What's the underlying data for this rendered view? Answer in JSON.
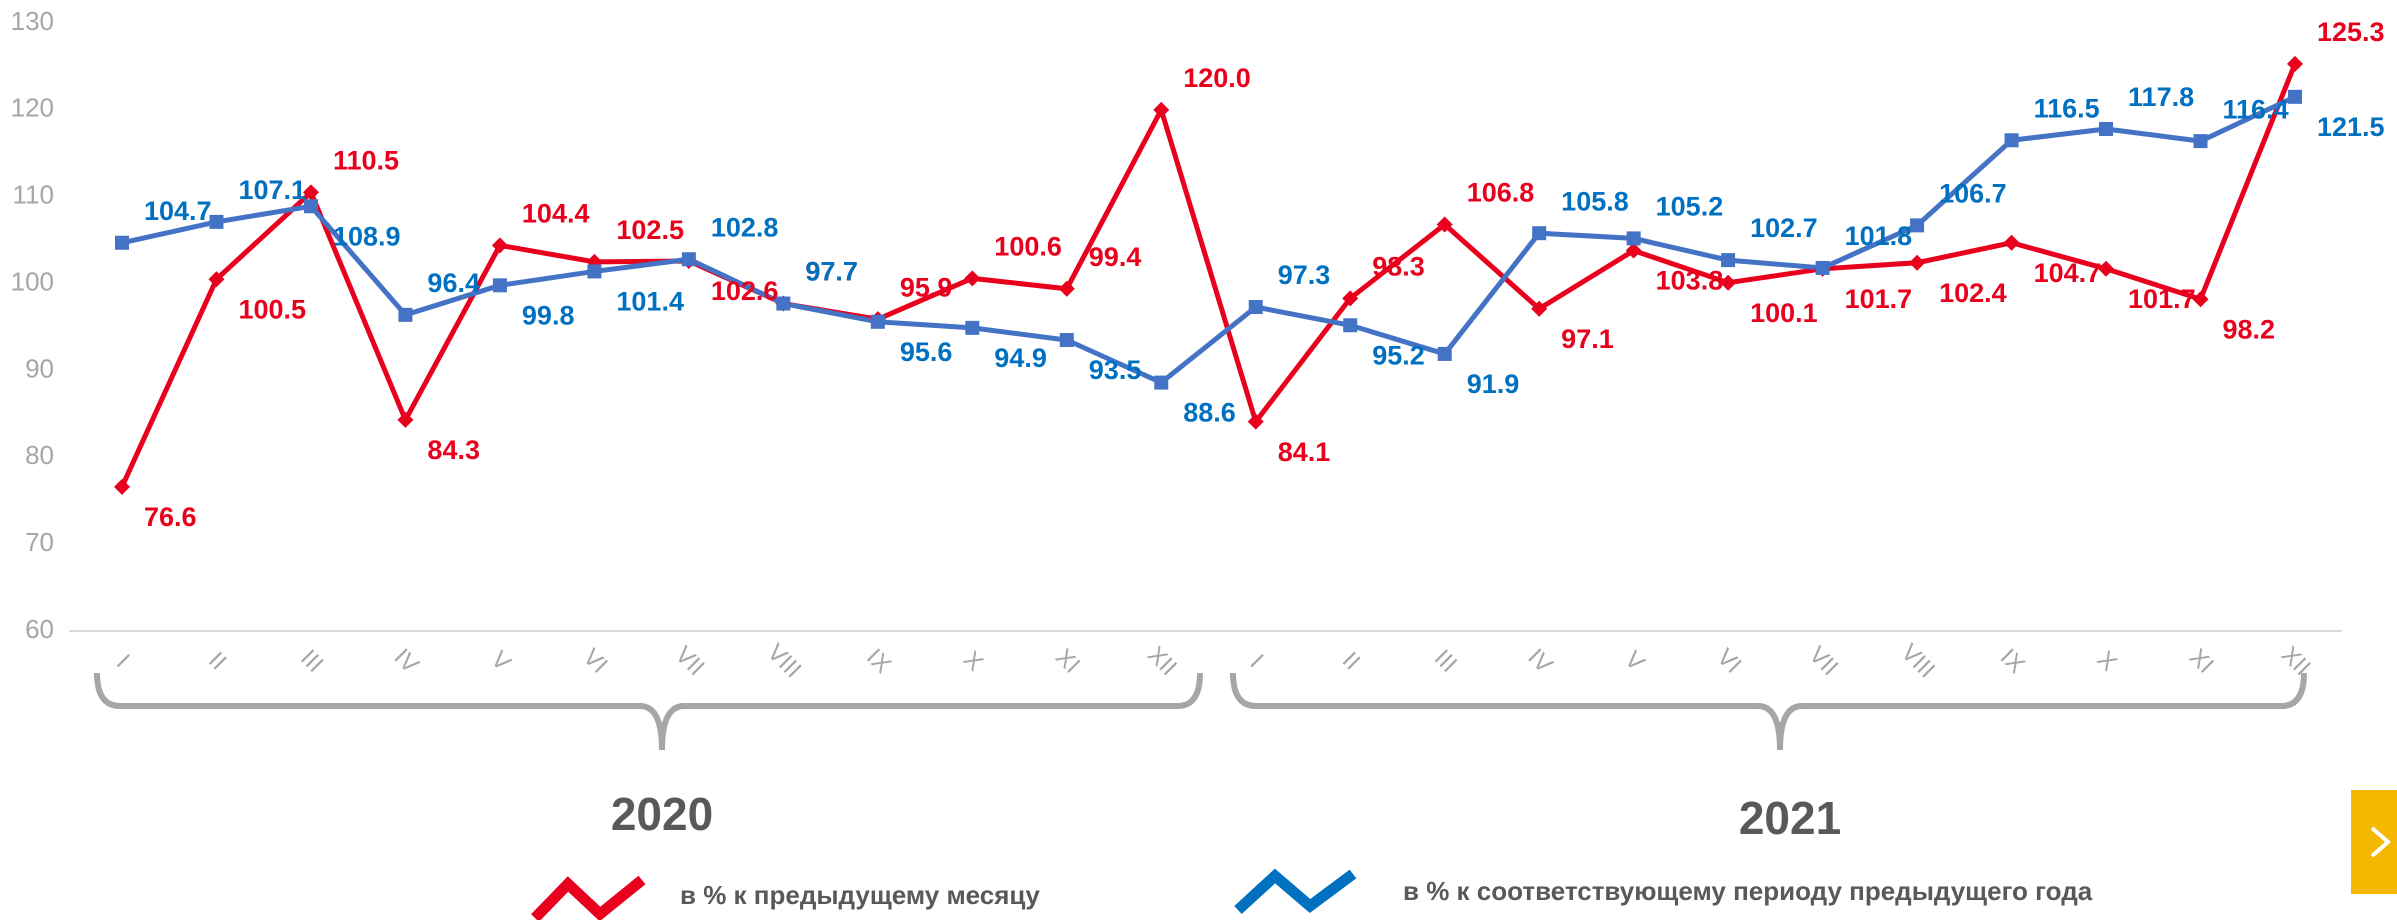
{
  "chart_data": {
    "type": "line",
    "categories": [
      "I",
      "II",
      "III",
      "IV",
      "V",
      "VI",
      "VII",
      "VIII",
      "IX",
      "X",
      "XI",
      "XII",
      "I",
      "II",
      "III",
      "IV",
      "V",
      "VI",
      "VII",
      "VIII",
      "IX",
      "X",
      "XI",
      "XII"
    ],
    "years": [
      "2020",
      "2021"
    ],
    "series": [
      {
        "name": "в % к предыдущему месяцу",
        "color": "#e8001c",
        "values": [
          76.6,
          100.5,
          110.5,
          84.3,
          104.4,
          102.5,
          102.6,
          97.7,
          95.9,
          100.6,
          99.4,
          120.0,
          84.1,
          98.3,
          106.8,
          97.1,
          103.8,
          100.1,
          101.7,
          102.4,
          104.7,
          101.7,
          98.2,
          125.3
        ],
        "value_labels": [
          "76.6",
          "100.5",
          "110.5",
          "84.3",
          "104.4",
          "102.5",
          "102.6",
          "97.7",
          "95.9",
          "100.6",
          "99.4",
          "120.0",
          "84.1",
          "98.3",
          "106.8",
          "97.1",
          "103.8",
          "100.1",
          "101.7",
          "102.4",
          "104.7",
          "101.7",
          "98.2",
          "125.3"
        ]
      },
      {
        "name": "в % к соответствующему периоду предыдущего года",
        "color": "#4472c4",
        "values": [
          104.7,
          107.1,
          108.9,
          96.4,
          99.8,
          101.4,
          102.8,
          97.7,
          95.6,
          94.9,
          93.5,
          88.6,
          97.3,
          95.2,
          91.9,
          105.8,
          105.2,
          102.7,
          101.8,
          106.7,
          116.5,
          117.8,
          116.4,
          121.5
        ],
        "value_labels": [
          "104.7",
          "107.1",
          "108.9",
          "96.4",
          "99.8",
          "101.4",
          "102.8",
          "97.7",
          "95.6",
          "94.9",
          "93.5",
          "88.6",
          "97.3",
          "95.2",
          "91.9",
          "105.8",
          "105.2",
          "102.7",
          "101.8",
          "106.7",
          "116.5",
          "117.8",
          "116.4",
          "121.5"
        ]
      }
    ],
    "ylim": [
      60,
      130
    ],
    "yticks": [
      60,
      70,
      80,
      90,
      100,
      110,
      120,
      130
    ],
    "grid": false
  }
}
